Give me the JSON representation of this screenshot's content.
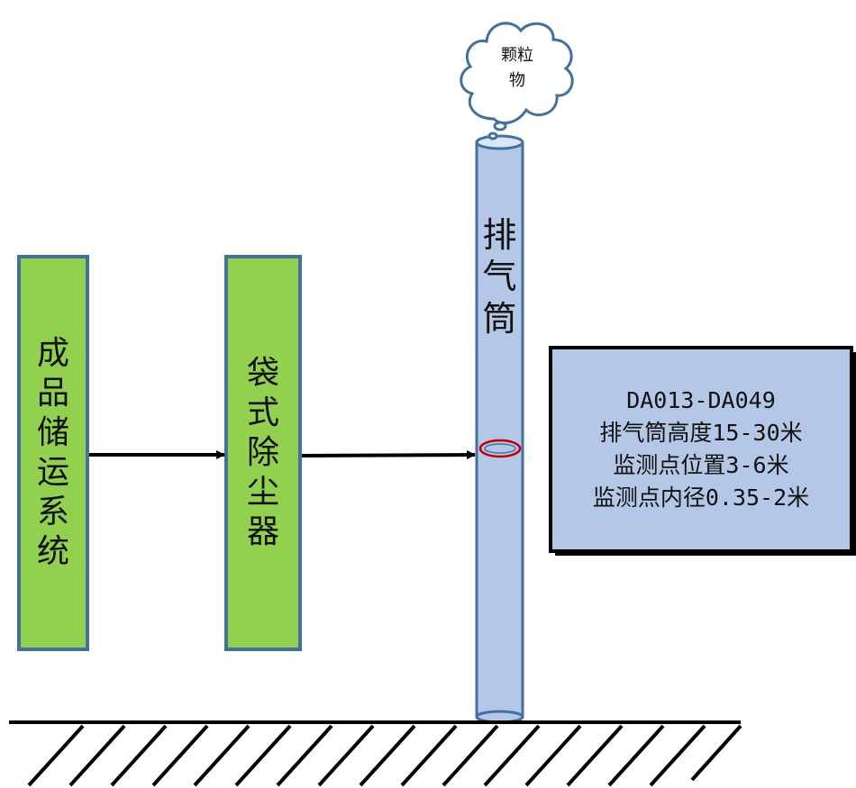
{
  "process": {
    "source_chars": [
      "成",
      "品",
      "储",
      "运",
      "系",
      "统"
    ],
    "collector_chars": [
      "袋",
      "式",
      "除",
      "尘",
      "器"
    ],
    "stack_chars": [
      "排",
      "气",
      "筒"
    ],
    "emission_chars": [
      "颗粒",
      "物"
    ]
  },
  "info": {
    "lines": [
      "DA013-DA049",
      "排气筒高度15-30米",
      "监测点位置3-6米",
      "监测点内径0.35-2米"
    ]
  },
  "colors": {
    "process_box_fill": "#92d050",
    "process_box_border": "#41719c",
    "stack_fill": "#b4c7e7",
    "stack_border": "#41719c",
    "info_fill": "#b4c7e7",
    "monitor_ring": "#c00000",
    "arrow": "#000000",
    "ground": "#000000"
  },
  "icons": {
    "cloud": "cloud-icon",
    "ground": "ground-hatch-icon",
    "sampling_port": "monitoring-port-icon"
  }
}
